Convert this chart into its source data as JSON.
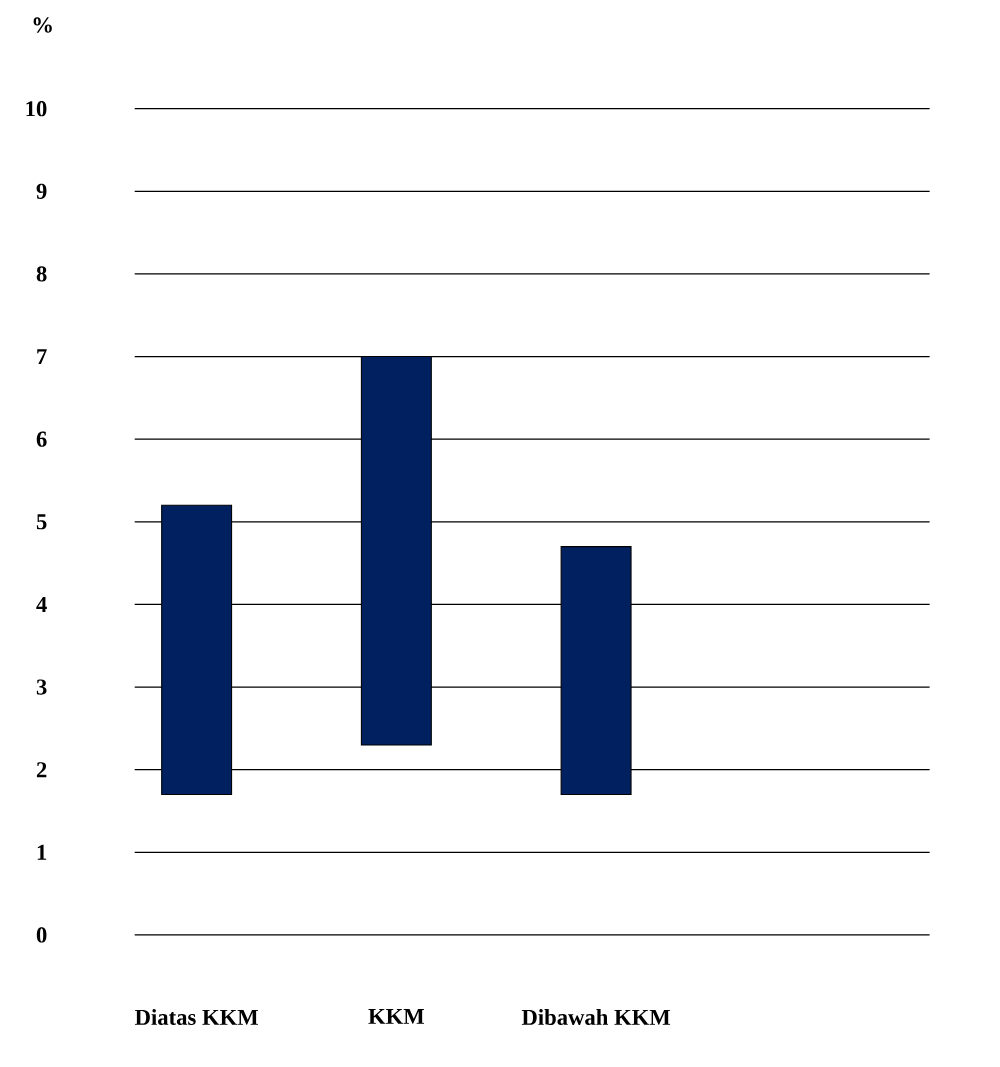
{
  "chart_data": {
    "type": "bar",
    "ylabel": "%",
    "categories": [
      "Diatas KKM",
      "KKM",
      "Dibawah KKM"
    ],
    "base": [
      1.7,
      2.3,
      1.7
    ],
    "values": [
      3.5,
      4.7,
      3.0
    ],
    "color": "#002060",
    "ylim": [
      0,
      10
    ],
    "yticks": [
      0,
      1,
      2,
      3,
      4,
      5,
      6,
      7,
      8,
      9,
      10
    ],
    "grid": "y"
  }
}
